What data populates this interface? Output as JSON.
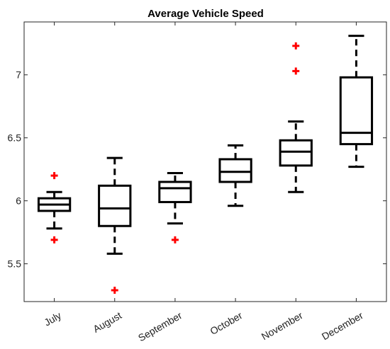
{
  "chart_data": {
    "type": "boxplot",
    "title": "Average Vehicle Speed",
    "xlabel": "",
    "ylabel": "",
    "ylim": [
      5.2,
      7.42
    ],
    "yticks": [
      5.5,
      6,
      6.5,
      7
    ],
    "ytick_labels": [
      "5.5",
      "6",
      "6.5",
      "7"
    ],
    "grid": false,
    "box_color": "#000000",
    "outlier_color": "#ff0000",
    "categories": [
      "July",
      "August",
      "September",
      "October",
      "November",
      "December"
    ],
    "boxes": [
      {
        "category": "July",
        "whisker_low": 5.78,
        "q1": 5.92,
        "median": 5.97,
        "q3": 6.02,
        "whisker_high": 6.07,
        "outliers": [
          6.2,
          5.69
        ]
      },
      {
        "category": "August",
        "whisker_low": 5.58,
        "q1": 5.8,
        "median": 5.94,
        "q3": 6.12,
        "whisker_high": 6.34,
        "outliers": [
          5.29
        ]
      },
      {
        "category": "September",
        "whisker_low": 5.82,
        "q1": 5.99,
        "median": 6.1,
        "q3": 6.15,
        "whisker_high": 6.22,
        "outliers": [
          5.69
        ]
      },
      {
        "category": "October",
        "whisker_low": 5.96,
        "q1": 6.15,
        "median": 6.23,
        "q3": 6.33,
        "whisker_high": 6.44,
        "outliers": []
      },
      {
        "category": "November",
        "whisker_low": 6.07,
        "q1": 6.28,
        "median": 6.39,
        "q3": 6.48,
        "whisker_high": 6.63,
        "outliers": [
          7.23,
          7.03
        ]
      },
      {
        "category": "December",
        "whisker_low": 6.27,
        "q1": 6.45,
        "median": 6.54,
        "q3": 6.98,
        "whisker_high": 7.31,
        "outliers": []
      }
    ]
  }
}
